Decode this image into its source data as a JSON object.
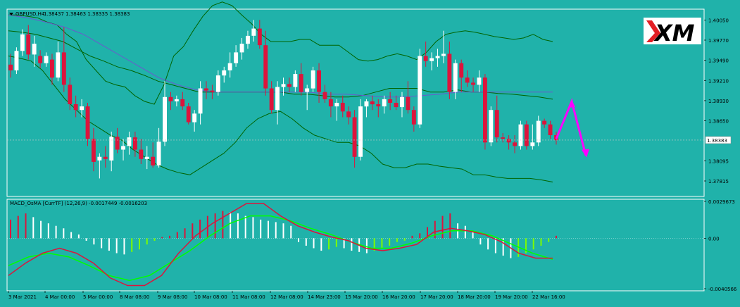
{
  "chart_data": [
    {
      "type": "candlestick",
      "symbol_label": "GBPUSD,H4",
      "ohlc_label": "1.38437 1.38463 1.38335 1.38383",
      "ylim": [
        1.376,
        1.402
      ],
      "y_ticks": [
        "1.40050",
        "1.39770",
        "1.39490",
        "1.39210",
        "1.38930",
        "1.38650",
        "1.38383",
        "1.38095",
        "1.37815"
      ],
      "y_tick_values": [
        1.4005,
        1.3977,
        1.3949,
        1.3921,
        1.3893,
        1.3865,
        1.38383,
        1.38095,
        1.37815
      ],
      "current_price": "1.38383",
      "candles": [
        [
          1.3943,
          1.3958,
          1.3925,
          1.3935
        ],
        [
          1.3935,
          1.3967,
          1.393,
          1.3962
        ],
        [
          1.3962,
          1.3992,
          1.3955,
          1.3985
        ],
        [
          1.3985,
          1.3998,
          1.395,
          1.3957
        ],
        [
          1.3957,
          1.3983,
          1.394,
          1.3972
        ],
        [
          1.3955,
          1.3963,
          1.3938,
          1.3945
        ],
        [
          1.3945,
          1.396,
          1.394,
          1.3955
        ],
        [
          1.395,
          1.3958,
          1.3915,
          1.3925
        ],
        [
          1.3925,
          1.3975,
          1.392,
          1.396
        ],
        [
          1.396,
          1.3995,
          1.3905,
          1.3915
        ],
        [
          1.3915,
          1.3925,
          1.388,
          1.3888
        ],
        [
          1.3888,
          1.39,
          1.387,
          1.388
        ],
        [
          1.388,
          1.3895,
          1.387,
          1.3885
        ],
        [
          1.3885,
          1.389,
          1.383,
          1.384
        ],
        [
          1.384,
          1.3855,
          1.3795,
          1.3808
        ],
        [
          1.381,
          1.382,
          1.3785,
          1.3815
        ],
        [
          1.3815,
          1.383,
          1.38,
          1.3812
        ],
        [
          1.381,
          1.385,
          1.3795,
          1.3843
        ],
        [
          1.3843,
          1.3855,
          1.382,
          1.3825
        ],
        [
          1.3825,
          1.384,
          1.381,
          1.383
        ],
        [
          1.383,
          1.385,
          1.3818,
          1.3842
        ],
        [
          1.3842,
          1.385,
          1.3815,
          1.3825
        ],
        [
          1.3825,
          1.384,
          1.3805,
          1.3812
        ],
        [
          1.3812,
          1.383,
          1.3798,
          1.3815
        ],
        [
          1.3815,
          1.3835,
          1.38,
          1.3803
        ],
        [
          1.3803,
          1.3855,
          1.38,
          1.3836
        ],
        [
          1.3836,
          1.392,
          1.383,
          1.3898
        ],
        [
          1.3898,
          1.3905,
          1.388,
          1.3892
        ],
        [
          1.3892,
          1.39,
          1.3885,
          1.3895
        ],
        [
          1.3895,
          1.3905,
          1.388,
          1.3885
        ],
        [
          1.3885,
          1.389,
          1.386,
          1.3863
        ],
        [
          1.3863,
          1.388,
          1.385,
          1.3875
        ],
        [
          1.3875,
          1.392,
          1.386,
          1.391
        ],
        [
          1.391,
          1.392,
          1.3895,
          1.3907
        ],
        [
          1.3907,
          1.3915,
          1.3895,
          1.3905
        ],
        [
          1.3905,
          1.3935,
          1.39,
          1.3928
        ],
        [
          1.3928,
          1.394,
          1.3918,
          1.3935
        ],
        [
          1.3935,
          1.396,
          1.3925,
          1.3945
        ],
        [
          1.3945,
          1.397,
          1.394,
          1.396
        ],
        [
          1.396,
          1.398,
          1.395,
          1.3972
        ],
        [
          1.3972,
          1.399,
          1.3965,
          1.3983
        ],
        [
          1.3983,
          1.4005,
          1.3975,
          1.3993
        ],
        [
          1.3993,
          1.4005,
          1.3965,
          1.397
        ],
        [
          1.397,
          1.399,
          1.39,
          1.391
        ],
        [
          1.391,
          1.392,
          1.3875,
          1.388
        ],
        [
          1.388,
          1.392,
          1.386,
          1.3912
        ],
        [
          1.3912,
          1.3925,
          1.39,
          1.3916
        ],
        [
          1.3916,
          1.3925,
          1.3905,
          1.3912
        ],
        [
          1.3912,
          1.3935,
          1.3905,
          1.393
        ],
        [
          1.393,
          1.3945,
          1.39,
          1.3905
        ],
        [
          1.3905,
          1.3915,
          1.388,
          1.391
        ],
        [
          1.391,
          1.394,
          1.3905,
          1.3935
        ],
        [
          1.3935,
          1.3945,
          1.389,
          1.3905
        ],
        [
          1.3905,
          1.3915,
          1.389,
          1.3895
        ],
        [
          1.3895,
          1.3905,
          1.387,
          1.3885
        ],
        [
          1.3885,
          1.3895,
          1.3865,
          1.389
        ],
        [
          1.389,
          1.39,
          1.387,
          1.3878
        ],
        [
          1.3878,
          1.3885,
          1.386,
          1.387
        ],
        [
          1.387,
          1.388,
          1.38,
          1.3815
        ],
        [
          1.3815,
          1.3895,
          1.381,
          1.3885
        ],
        [
          1.3885,
          1.3895,
          1.387,
          1.3892
        ],
        [
          1.3892,
          1.39,
          1.388,
          1.3888
        ],
        [
          1.3888,
          1.3895,
          1.387,
          1.3885
        ],
        [
          1.3885,
          1.39,
          1.3875,
          1.3895
        ],
        [
          1.3895,
          1.3905,
          1.388,
          1.389
        ],
        [
          1.389,
          1.39,
          1.388,
          1.3884
        ],
        [
          1.3884,
          1.3905,
          1.387,
          1.3898
        ],
        [
          1.3898,
          1.392,
          1.3875,
          1.388
        ],
        [
          1.388,
          1.3885,
          1.385,
          1.386
        ],
        [
          1.386,
          1.3965,
          1.3855,
          1.3955
        ],
        [
          1.3955,
          1.3975,
          1.394,
          1.3948
        ],
        [
          1.3948,
          1.396,
          1.3935,
          1.3952
        ],
        [
          1.3952,
          1.3965,
          1.394,
          1.3955
        ],
        [
          1.3955,
          1.399,
          1.3945,
          1.3958
        ],
        [
          1.3958,
          1.3975,
          1.3895,
          1.3905
        ],
        [
          1.3905,
          1.395,
          1.3895,
          1.3945
        ],
        [
          1.3945,
          1.395,
          1.3905,
          1.3925
        ],
        [
          1.3925,
          1.3935,
          1.3912,
          1.3918
        ],
        [
          1.3918,
          1.3925,
          1.3905,
          1.3915
        ],
        [
          1.3915,
          1.3935,
          1.3905,
          1.3925
        ],
        [
          1.3925,
          1.393,
          1.3825,
          1.3835
        ],
        [
          1.3835,
          1.3885,
          1.383,
          1.388
        ],
        [
          1.388,
          1.39,
          1.3835,
          1.3842
        ],
        [
          1.3842,
          1.3848,
          1.3835,
          1.384
        ],
        [
          1.384,
          1.3845,
          1.3825,
          1.3835
        ],
        [
          1.3835,
          1.3845,
          1.382,
          1.383
        ],
        [
          1.383,
          1.3865,
          1.3825,
          1.386
        ],
        [
          1.386,
          1.3865,
          1.3825,
          1.383
        ],
        [
          1.383,
          1.386,
          1.3825,
          1.3835
        ],
        [
          1.3835,
          1.3872,
          1.383,
          1.3865
        ],
        [
          1.3865,
          1.3868,
          1.3855,
          1.386
        ],
        [
          1.386,
          1.3865,
          1.384,
          1.3845
        ],
        [
          1.3845,
          1.385,
          1.3832,
          1.3838
        ]
      ],
      "bands_upper": [
        1.4012,
        1.4012,
        1.401,
        1.4008,
        1.4002,
        1.3998,
        1.3985,
        1.3975,
        1.395,
        1.3935,
        1.392,
        1.3915,
        1.3912,
        1.39,
        1.3892,
        1.3888,
        1.3915,
        1.3955,
        1.3968,
        1.399,
        1.401,
        1.4025,
        1.403,
        1.4025,
        1.4012,
        1.4,
        1.3985,
        1.3975,
        1.3975,
        1.3975,
        1.3978,
        1.3978,
        1.397,
        1.397,
        1.397,
        1.396,
        1.395,
        1.3948,
        1.395,
        1.3955,
        1.3958,
        1.3955,
        1.395,
        1.396,
        1.3975,
        1.3985,
        1.3988,
        1.399,
        1.3988,
        1.3985,
        1.3982,
        1.398,
        1.3978,
        1.398,
        1.3985,
        1.3978,
        1.3975
      ],
      "bands_middle": [
        1.399,
        1.3988,
        1.3985,
        1.398,
        1.3975,
        1.3965,
        1.3955,
        1.3948,
        1.394,
        1.3935,
        1.3928,
        1.392,
        1.3915,
        1.391,
        1.3905,
        1.3905,
        1.3905,
        1.3905,
        1.3905,
        1.3905,
        1.3905,
        1.3902,
        1.3902,
        1.39,
        1.3898,
        1.3898,
        1.39,
        1.3905,
        1.391,
        1.391,
        1.391,
        1.3905,
        1.3905,
        1.3908,
        1.3905,
        1.3905,
        1.3903,
        1.3902,
        1.39,
        1.3898,
        1.3895
      ],
      "bands_lower": [
        1.3955,
        1.3952,
        1.3948,
        1.3935,
        1.3915,
        1.3895,
        1.388,
        1.3865,
        1.3855,
        1.3845,
        1.3838,
        1.3825,
        1.3815,
        1.3805,
        1.3798,
        1.3793,
        1.379,
        1.38,
        1.381,
        1.382,
        1.3835,
        1.3855,
        1.3868,
        1.3875,
        1.3878,
        1.3868,
        1.3855,
        1.3845,
        1.384,
        1.3835,
        1.3835,
        1.383,
        1.382,
        1.3805,
        1.38,
        1.38,
        1.3805,
        1.3805,
        1.3802,
        1.38,
        1.3798,
        1.379,
        1.379,
        1.3787,
        1.3785,
        1.3785,
        1.3785,
        1.3783,
        1.378
      ],
      "ma_line": [
        1.4012,
        1.4008,
        1.4002,
        1.3995,
        1.3985,
        1.397,
        1.3955,
        1.394,
        1.3925,
        1.3915,
        1.3908,
        1.3905,
        1.3905,
        1.3905,
        1.3905,
        1.3905,
        1.3905,
        1.3902,
        1.3902,
        1.39,
        1.3898,
        1.3898,
        1.39,
        1.3902,
        1.3905,
        1.3905,
        1.3905,
        1.3905,
        1.3905,
        1.3905
      ]
    },
    {
      "type": "histogram+line",
      "indicator_label": "MACD_OsMA [CurrTF] (12,26,9) -0.0017449 -0.0016203",
      "ylim": [
        -0.0040566,
        0.0029673
      ],
      "y_ticks": [
        "0.0029673",
        "0.00",
        "-0.0040566"
      ],
      "y_tick_values": [
        0.0029673,
        0.0,
        -0.0040566
      ],
      "histogram": [
        0.0015,
        0.0018,
        0.002,
        0.0017,
        0.0014,
        0.0012,
        0.001,
        0.0008,
        0.0005,
        0.0003,
        -0.0002,
        -0.0005,
        -0.0008,
        -0.001,
        -0.0012,
        -0.0013,
        -0.0011,
        -0.0009,
        -0.0005,
        -0.0002,
        0.0001,
        0.0002,
        0.0005,
        0.0008,
        0.0012,
        0.0015,
        0.0018,
        0.002,
        0.0022,
        0.0021,
        0.002,
        0.0018,
        0.0017,
        0.0015,
        0.0014,
        0.0013,
        0.0012,
        0.001,
        -0.0003,
        -0.0006,
        -0.0008,
        -0.001,
        -0.0009,
        -0.0007,
        -0.0008,
        -0.001,
        -0.0011,
        -0.0012,
        -0.001,
        -0.0008,
        -0.0006,
        -0.0003,
        -0.0002,
        0.0002,
        0.0004,
        0.0009,
        0.0014,
        0.0018,
        0.002,
        0.0012,
        0.001,
        0.0005,
        -0.0005,
        -0.0009,
        -0.0012,
        -0.0014,
        -0.0016,
        -0.0015,
        -0.0012,
        -0.0009,
        -0.0006,
        -0.0003,
        0.0002
      ],
      "histogram_colors_note": "red rising above zero, white falling above zero, green rising below zero, white/green mixed",
      "macd_line": [
        -0.003,
        -0.002,
        -0.0012,
        -0.0008,
        -0.0012,
        -0.002,
        -0.0032,
        -0.0038,
        -0.0038,
        -0.003,
        -0.0012,
        0.0002,
        0.0012,
        0.002,
        0.0028,
        0.0028,
        0.0018,
        0.001,
        0.0005,
        0.0001,
        -0.0002,
        -0.0008,
        -0.001,
        -0.0008,
        -0.0005,
        0.0005,
        0.0008,
        0.0006,
        0.0003,
        -0.0003,
        -0.0012,
        -0.0016,
        -0.0016
      ],
      "signal_line": [
        -0.0022,
        -0.0015,
        -0.0012,
        -0.0015,
        -0.0022,
        -0.003,
        -0.0034,
        -0.003,
        -0.002,
        -0.001,
        0.0002,
        0.0012,
        0.0018,
        0.0018,
        0.0014,
        0.0008,
        0.0003,
        -0.0003,
        -0.0008,
        -0.0008,
        -0.0004,
        0.0002,
        0.0006,
        0.0006,
        0.0002,
        -0.0005,
        -0.0012,
        -0.0017
      ]
    }
  ],
  "x_labels": [
    "3 Mar 2021",
    "4 Mar 00:00",
    "5 Mar 00:00",
    "8 Mar 08:00",
    "9 Mar 08:00",
    "10 Mar 08:00",
    "11 Mar 08:00",
    "12 Mar 08:00",
    "14 Mar 23:00",
    "15 Mar 20:00",
    "16 Mar 20:00",
    "17 Mar 20:00",
    "18 Mar 20:00",
    "19 Mar 20:00",
    "22 Mar 16:00"
  ],
  "logo_text": "XM",
  "colors": {
    "background": "#20b2aa",
    "bull_candle": "#ffffff",
    "bear_candle": "#dc143c",
    "bands": "#006400",
    "ma_line": "#6a5acd",
    "macd_line": "#dc143c",
    "signal_line": "#00ff00",
    "hist_up": "#dc143c",
    "hist_down": "#ffffff",
    "hist_neg": "#7cfc00",
    "arrow": "#ff00ff",
    "grid": "#ffffff"
  }
}
